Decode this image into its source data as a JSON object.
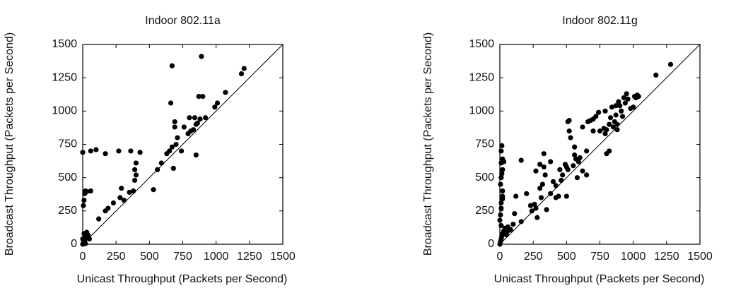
{
  "chart_data": [
    {
      "type": "scatter",
      "title": "Indoor 802.11a",
      "x_label": "Unicast Throughput (Packets per Second)",
      "y_label": "Broadcast Throughput (Packets per Second)",
      "color": "#000000",
      "xlim": [
        0,
        1500
      ],
      "ylim": [
        0,
        1500
      ],
      "xticks": [
        0,
        250,
        500,
        750,
        1000,
        1250,
        1500
      ],
      "yticks": [
        0,
        250,
        500,
        750,
        1000,
        1250,
        1500
      ],
      "x": [
        0,
        5,
        10,
        15,
        20,
        25,
        10,
        30,
        40,
        50,
        0,
        20,
        5,
        10,
        15,
        20,
        30,
        60,
        0,
        60,
        100,
        170,
        270,
        360,
        430,
        120,
        170,
        190,
        230,
        280,
        290,
        310,
        350,
        380,
        390,
        390,
        400,
        400,
        530,
        560,
        590,
        630,
        650,
        660,
        670,
        670,
        680,
        690,
        690,
        700,
        710,
        740,
        760,
        790,
        800,
        810,
        830,
        840,
        850,
        850,
        860,
        870,
        880,
        890,
        900,
        920,
        990,
        1010,
        1070,
        1190,
        1210
      ],
      "values": [
        0,
        10,
        20,
        30,
        50,
        60,
        80,
        90,
        70,
        40,
        40,
        5,
        290,
        330,
        380,
        400,
        395,
        400,
        690,
        700,
        710,
        680,
        700,
        700,
        690,
        190,
        250,
        270,
        310,
        350,
        420,
        330,
        390,
        400,
        480,
        560,
        520,
        610,
        410,
        560,
        610,
        680,
        700,
        1060,
        1340,
        730,
        570,
        880,
        920,
        750,
        800,
        700,
        880,
        830,
        950,
        850,
        860,
        950,
        900,
        670,
        910,
        1110,
        940,
        1410,
        1110,
        950,
        1030,
        1060,
        1140,
        1280,
        1320
      ]
    },
    {
      "type": "scatter",
      "title": "Indoor 802.11g",
      "x_label": "Unicast Throughput (Packets per Second)",
      "y_label": "Broadcast Throughput (Packets per Second)",
      "color": "#000000",
      "xlim": [
        0,
        1500
      ],
      "ylim": [
        0,
        1500
      ],
      "xticks": [
        0,
        250,
        500,
        750,
        1000,
        1250,
        1500
      ],
      "yticks": [
        0,
        250,
        500,
        750,
        1000,
        1250,
        1500
      ],
      "x": [
        0,
        5,
        10,
        15,
        20,
        30,
        40,
        50,
        10,
        0,
        60,
        80,
        5,
        10,
        10,
        20,
        20,
        5,
        10,
        15,
        20,
        10,
        20,
        10,
        15,
        30,
        20,
        60,
        100,
        110,
        120,
        160,
        160,
        200,
        230,
        240,
        260,
        270,
        270,
        280,
        300,
        300,
        310,
        320,
        330,
        330,
        340,
        350,
        380,
        380,
        400,
        420,
        420,
        440,
        450,
        460,
        470,
        490,
        500,
        500,
        510,
        510,
        520,
        520,
        530,
        550,
        560,
        560,
        570,
        580,
        590,
        600,
        620,
        620,
        650,
        650,
        660,
        680,
        700,
        700,
        720,
        740,
        750,
        780,
        790,
        790,
        800,
        800,
        820,
        820,
        830,
        840,
        850,
        860,
        870,
        870,
        880,
        880,
        890,
        900,
        910,
        920,
        930,
        940,
        950,
        960,
        980,
        1000,
        1010,
        1020,
        1030,
        1040,
        1170,
        1280
      ],
      "values": [
        0,
        20,
        40,
        60,
        80,
        100,
        120,
        70,
        140,
        180,
        100,
        110,
        220,
        270,
        310,
        340,
        400,
        450,
        500,
        530,
        560,
        610,
        640,
        700,
        740,
        620,
        360,
        130,
        150,
        230,
        360,
        630,
        170,
        380,
        290,
        250,
        300,
        270,
        550,
        200,
        600,
        420,
        350,
        450,
        580,
        680,
        520,
        260,
        620,
        380,
        470,
        440,
        350,
        360,
        560,
        480,
        520,
        600,
        580,
        360,
        560,
        920,
        850,
        930,
        800,
        590,
        730,
        670,
        640,
        500,
        620,
        650,
        880,
        550,
        700,
        520,
        920,
        930,
        940,
        850,
        960,
        990,
        850,
        870,
        1000,
        830,
        860,
        680,
        700,
        900,
        950,
        1030,
        880,
        920,
        970,
        1040,
        900,
        860,
        1070,
        1040,
        1000,
        960,
        1100,
        1060,
        1130,
        1090,
        1020,
        1030,
        1110,
        1100,
        1120,
        1110,
        1270,
        1350
      ]
    }
  ]
}
